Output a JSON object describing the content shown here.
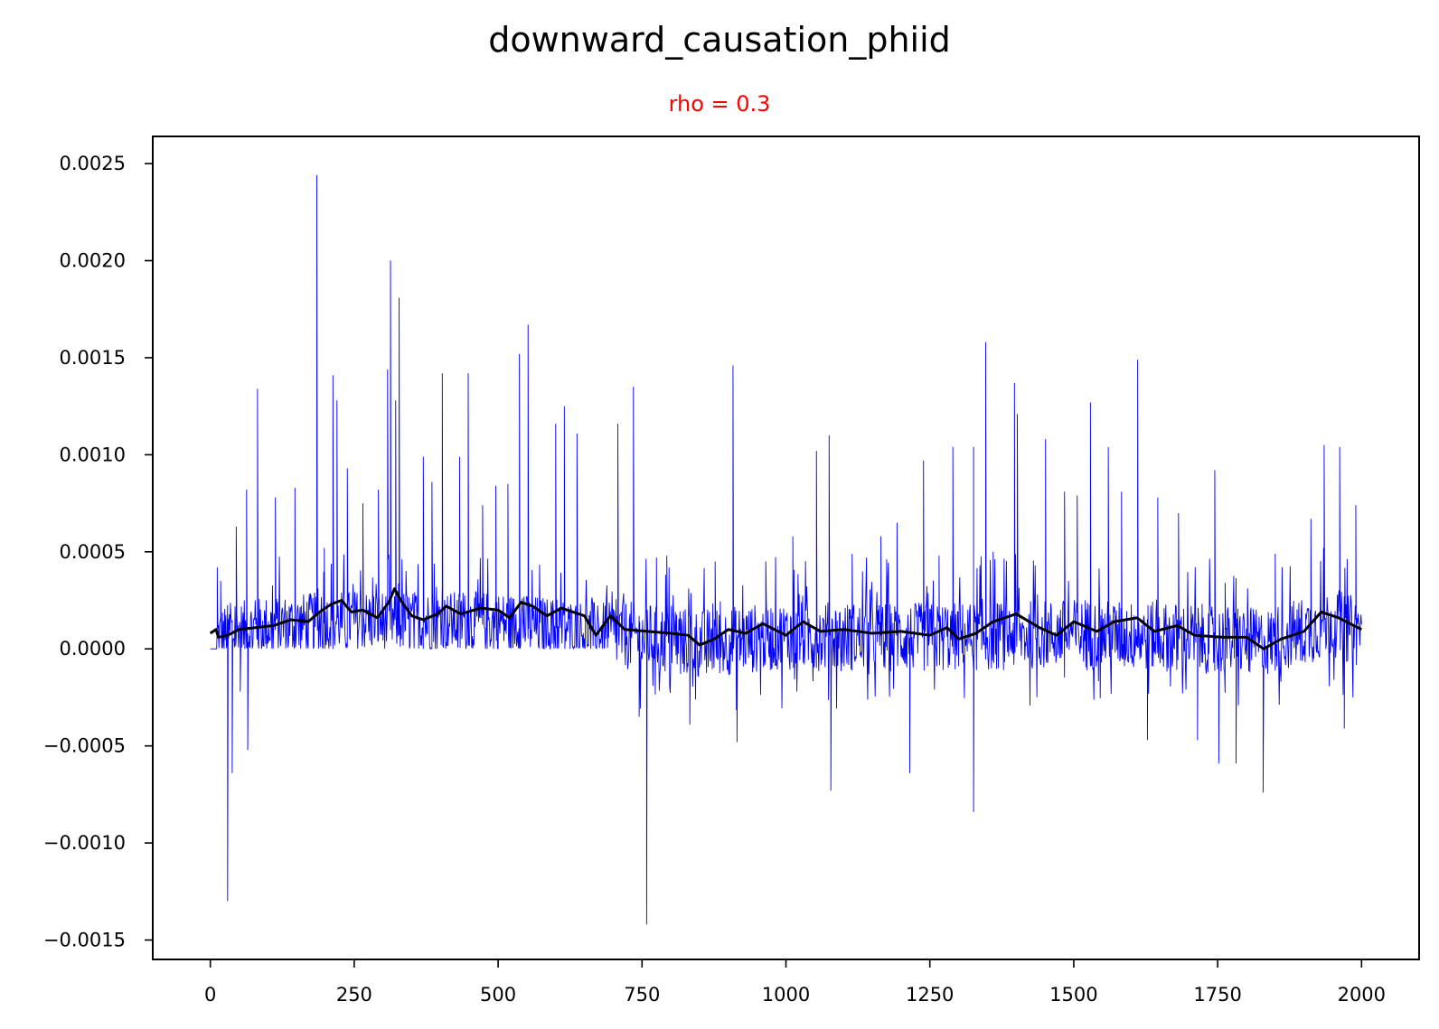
{
  "chart_data": {
    "type": "line",
    "title": "downward_causation_phiid",
    "subtitle": "rho = 0.3",
    "xlabel": "",
    "ylabel": "",
    "xlim": [
      -100,
      2100
    ],
    "ylim": [
      -0.0016,
      0.00264
    ],
    "x_ticks": [
      0,
      250,
      500,
      750,
      1000,
      1250,
      1500,
      1750,
      2000
    ],
    "y_ticks": [
      -0.0015,
      -0.001,
      -0.0005,
      0.0,
      0.0005,
      0.001,
      0.0015,
      0.002,
      0.0025
    ],
    "y_tick_labels": [
      "−0.0015",
      "−0.0010",
      "−0.0005",
      "0.0000",
      "0.0005",
      "0.0010",
      "0.0015",
      "0.0020",
      "0.0025"
    ],
    "grid": false,
    "legend": "none",
    "colors": {
      "raw": "#0000ff",
      "smoothed": "#000000",
      "subtitle": "#ff0000"
    },
    "series": [
      {
        "style": "raw",
        "x_range": [
          0,
          2000
        ],
        "n_points": 2001,
        "baseline_values": [
          [
            0,
            4e-05
          ],
          [
            100,
            0.0001
          ],
          [
            250,
            0.00013
          ],
          [
            500,
            0.00012
          ],
          [
            700,
            6e-05
          ],
          [
            850,
            1e-05
          ],
          [
            1000,
            5e-05
          ],
          [
            1250,
            4e-05
          ],
          [
            1500,
            6e-05
          ],
          [
            1700,
            4e-05
          ],
          [
            1830,
            1e-05
          ],
          [
            1950,
            0.00012
          ],
          [
            2000,
            6e-05
          ]
        ],
        "peaks": [
          [
            12,
            0.00042
          ],
          [
            18,
            0.00035
          ],
          [
            30,
            -0.0013
          ],
          [
            38,
            -0.00064
          ],
          [
            45,
            0.00063
          ],
          [
            52,
            -0.00022
          ],
          [
            63,
            0.00082
          ],
          [
            65,
            -0.00052
          ],
          [
            82,
            0.00134
          ],
          [
            113,
            0.00078
          ],
          [
            147,
            0.00083
          ],
          [
            185,
            0.00244
          ],
          [
            198,
            0.00052
          ],
          [
            213,
            0.00141
          ],
          [
            220,
            0.00128
          ],
          [
            238,
            0.00093
          ],
          [
            265,
            0.00075
          ],
          [
            292,
            0.00082
          ],
          [
            308,
            0.00144
          ],
          [
            313,
            0.002
          ],
          [
            322,
            0.00128
          ],
          [
            328,
            0.00181
          ],
          [
            370,
            0.00099
          ],
          [
            385,
            0.00086
          ],
          [
            403,
            0.00142
          ],
          [
            433,
            0.00099
          ],
          [
            448,
            0.00142
          ],
          [
            473,
            0.00074
          ],
          [
            496,
            0.00084
          ],
          [
            517,
            0.00085
          ],
          [
            537,
            0.00152
          ],
          [
            552,
            0.00167
          ],
          [
            600,
            0.00116
          ],
          [
            615,
            0.00125
          ],
          [
            637,
            0.00111
          ],
          [
            708,
            0.00116
          ],
          [
            735,
            0.00135
          ],
          [
            745,
            -0.00035
          ],
          [
            758,
            -0.00142
          ],
          [
            775,
            0.00047
          ],
          [
            793,
            0.00048
          ],
          [
            833,
            -0.00039
          ],
          [
            877,
            0.00045
          ],
          [
            908,
            0.00146
          ],
          [
            915,
            -0.00048
          ],
          [
            965,
            0.00045
          ],
          [
            1012,
            0.00058
          ],
          [
            1053,
            0.00102
          ],
          [
            1078,
            -0.00073
          ],
          [
            1075,
            0.0011
          ],
          [
            1115,
            0.00049
          ],
          [
            1165,
            0.00058
          ],
          [
            1193,
            0.00065
          ],
          [
            1215,
            -0.00064
          ],
          [
            1239,
            0.00097
          ],
          [
            1266,
            0.00048
          ],
          [
            1290,
            0.00104
          ],
          [
            1326,
            0.00104
          ],
          [
            1326,
            -0.00084
          ],
          [
            1347,
            0.00158
          ],
          [
            1360,
            0.0005
          ],
          [
            1397,
            0.00137
          ],
          [
            1402,
            0.00121
          ],
          [
            1451,
            0.00108
          ],
          [
            1484,
            0.00081
          ],
          [
            1506,
            0.00079
          ],
          [
            1529,
            0.00127
          ],
          [
            1560,
            0.00104
          ],
          [
            1583,
            0.00081
          ],
          [
            1611,
            0.00149
          ],
          [
            1628,
            -0.00047
          ],
          [
            1646,
            0.00078
          ],
          [
            1682,
            0.0007
          ],
          [
            1715,
            -0.00047
          ],
          [
            1745,
            0.00092
          ],
          [
            1752,
            -0.00059
          ],
          [
            1763,
            0.00034
          ],
          [
            1782,
            -0.00059
          ],
          [
            1829,
            -0.00074
          ],
          [
            1850,
            0.00049
          ],
          [
            1912,
            0.00067
          ],
          [
            1935,
            0.00105
          ],
          [
            1962,
            0.00104
          ],
          [
            1990,
            0.00074
          ],
          [
            1970,
            -0.00041
          ]
        ]
      },
      {
        "style": "smoothed",
        "values": [
          [
            0,
            8e-05
          ],
          [
            10,
            0.0001
          ],
          [
            14,
            6e-05
          ],
          [
            30,
            7e-05
          ],
          [
            50,
            0.0001
          ],
          [
            80,
            0.00011
          ],
          [
            110,
            0.00012
          ],
          [
            140,
            0.00015
          ],
          [
            170,
            0.00014
          ],
          [
            190,
            0.00019
          ],
          [
            210,
            0.00023
          ],
          [
            228,
            0.00025
          ],
          [
            245,
            0.00019
          ],
          [
            265,
            0.0002
          ],
          [
            290,
            0.00016
          ],
          [
            310,
            0.00024
          ],
          [
            320,
            0.00031
          ],
          [
            333,
            0.00024
          ],
          [
            350,
            0.00017
          ],
          [
            370,
            0.00015
          ],
          [
            395,
            0.00018
          ],
          [
            410,
            0.00022
          ],
          [
            435,
            0.00018
          ],
          [
            470,
            0.00021
          ],
          [
            500,
            0.0002
          ],
          [
            520,
            0.00016
          ],
          [
            540,
            0.00024
          ],
          [
            560,
            0.00022
          ],
          [
            585,
            0.00017
          ],
          [
            610,
            0.00021
          ],
          [
            650,
            0.00017
          ],
          [
            670,
            7e-05
          ],
          [
            695,
            0.00017
          ],
          [
            720,
            0.0001
          ],
          [
            760,
            9e-05
          ],
          [
            800,
            8e-05
          ],
          [
            830,
            7e-05
          ],
          [
            850,
            2e-05
          ],
          [
            875,
            5e-05
          ],
          [
            900,
            0.0001
          ],
          [
            930,
            8e-05
          ],
          [
            960,
            0.00013
          ],
          [
            1000,
            7e-05
          ],
          [
            1030,
            0.00014
          ],
          [
            1060,
            9e-05
          ],
          [
            1100,
            0.0001
          ],
          [
            1150,
            8e-05
          ],
          [
            1200,
            9e-05
          ],
          [
            1250,
            7e-05
          ],
          [
            1280,
            0.00011
          ],
          [
            1300,
            5e-05
          ],
          [
            1330,
            8e-05
          ],
          [
            1360,
            0.00014
          ],
          [
            1400,
            0.00018
          ],
          [
            1440,
            0.00011
          ],
          [
            1470,
            7e-05
          ],
          [
            1500,
            0.00014
          ],
          [
            1540,
            9e-05
          ],
          [
            1570,
            0.00014
          ],
          [
            1610,
            0.00016
          ],
          [
            1640,
            9e-05
          ],
          [
            1680,
            0.00012
          ],
          [
            1710,
            7e-05
          ],
          [
            1760,
            6e-05
          ],
          [
            1800,
            6e-05
          ],
          [
            1830,
            0.0
          ],
          [
            1860,
            5e-05
          ],
          [
            1900,
            9e-05
          ],
          [
            1930,
            0.00019
          ],
          [
            1960,
            0.00016
          ],
          [
            1980,
            0.00013
          ],
          [
            2000,
            0.0001
          ]
        ]
      }
    ]
  }
}
